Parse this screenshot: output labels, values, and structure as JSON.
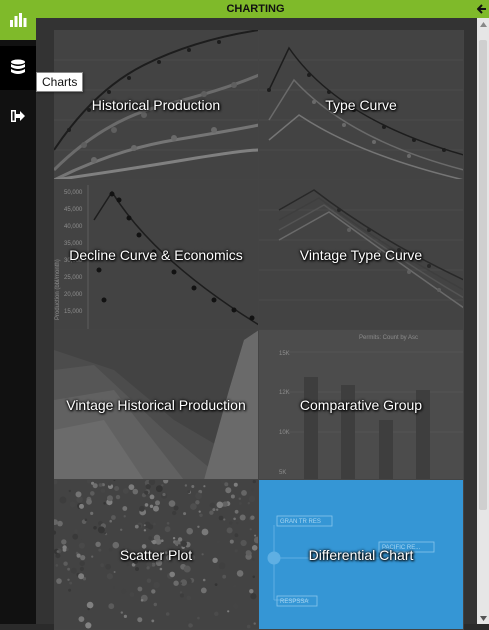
{
  "header": {
    "title": "CHARTING"
  },
  "sidebar": {
    "logo_icon": "bar-chart-icon",
    "items": [
      {
        "icon": "database-icon",
        "tooltip": "Charts"
      },
      {
        "icon": "sign-out-icon"
      }
    ]
  },
  "tiles": [
    {
      "label": "Historical Production"
    },
    {
      "label": "Type Curve"
    },
    {
      "label": "Decline Curve & Economics"
    },
    {
      "label": "Vintage Type Curve"
    },
    {
      "label": "Vintage Historical Production"
    },
    {
      "label": "Comparative Group"
    },
    {
      "label": "Scatter Plot"
    },
    {
      "label": "Differential Chart",
      "selected": true
    }
  ],
  "tile_bg_text": {
    "decline_y_ticks": [
      "50,000",
      "45,000",
      "40,000",
      "35,000",
      "30,000",
      "25,000",
      "20,000",
      "15,000"
    ],
    "decline_y_label": "Production (bbl/month)",
    "comparative_title": "Permits: Count by Asc",
    "comparative_ticks": [
      "15K",
      "12K",
      "10K",
      "5K"
    ],
    "diff_box1": "GRAN TR RES",
    "diff_box2": "PACIFIC RE...",
    "diff_box3": "RESPSSA"
  },
  "colors": {
    "accent": "#7fba2a",
    "selected": "#3a9bd8"
  }
}
